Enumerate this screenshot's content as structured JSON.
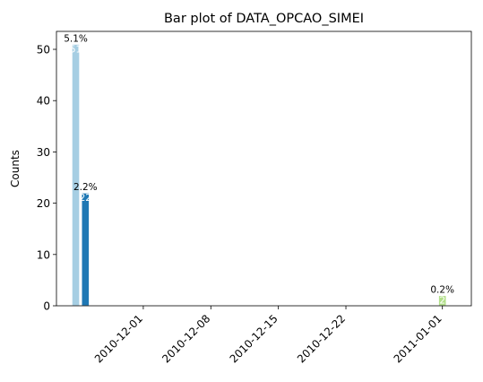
{
  "chart_data": {
    "type": "bar",
    "title": "Bar plot of DATA_OPCAO_SIMEI",
    "xlabel": "",
    "ylabel": "Counts",
    "ylim": [
      0,
      53.5
    ],
    "xlim": [
      "2010-11-22",
      "2011-01-04"
    ],
    "yticks": [
      "0",
      "10",
      "20",
      "30",
      "40",
      "50"
    ],
    "xticks": [
      "2010-12-01",
      "2010-12-08",
      "2010-12-15",
      "2010-12-22",
      "2011-01-01"
    ],
    "grid": false,
    "bars": [
      {
        "x": "2010-11-24",
        "value": 51,
        "pct_label": "5.1%",
        "value_label": "51",
        "color": "#a6cee3"
      },
      {
        "x": "2010-11-25",
        "value": 22,
        "pct_label": "2.2%",
        "value_label": "22",
        "color": "#1f78b4"
      },
      {
        "x": "2011-01-01",
        "value": 2,
        "pct_label": "0.2%",
        "value_label": "2",
        "color": "#b2df8a"
      }
    ]
  }
}
